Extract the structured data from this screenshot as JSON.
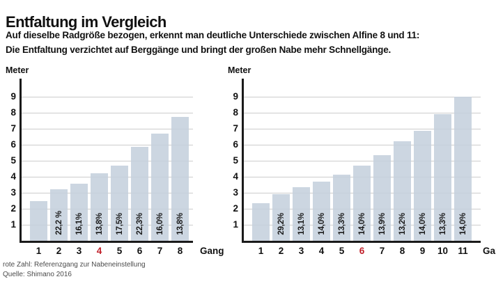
{
  "header": {
    "title": "Entfaltung im Vergleich",
    "subtitle_line1": "Auf dieselbe Radgröße bezogen, erkennt man deutliche Unterschiede zwischen Alfine 8 und 11:",
    "subtitle_line2": "Die Entfaltung verzichtet auf Berggänge und bringt der großen Nabe mehr Schnellgänge."
  },
  "footnote": {
    "line1": "rote Zahl: Referenzgang zur Nabeneinstellung",
    "line2": "Quelle: Shimano 2016"
  },
  "colors": {
    "bar_fill": "#c5d0dd",
    "grid_line": "#cccccc",
    "axis": "#1a1a1a",
    "reference_red": "#c0202a",
    "text": "#111111",
    "footnote_text": "#4a4a4a"
  },
  "chart_data": [
    {
      "type": "bar",
      "ylabel": "Meter",
      "xlabel": "Gang",
      "ylim": [
        0,
        10
      ],
      "yticks": [
        1,
        2,
        3,
        4,
        5,
        6,
        7,
        8,
        9
      ],
      "grid": true,
      "categories": [
        "1",
        "2",
        "3",
        "4",
        "5",
        "6",
        "7",
        "8"
      ],
      "values": [
        2.5,
        3.2,
        3.55,
        4.2,
        4.7,
        5.85,
        6.7,
        7.75
      ],
      "bar_labels": [
        "",
        "22,2 %",
        "16,1%",
        "13,8%",
        "17,5%",
        "22,3%",
        "16,0%",
        "13,8%"
      ],
      "reference_category": "4"
    },
    {
      "type": "bar",
      "ylabel": "Meter",
      "xlabel": "Gang",
      "ylim": [
        0,
        10
      ],
      "yticks": [
        1,
        2,
        3,
        4,
        5,
        6,
        7,
        8,
        9
      ],
      "grid": true,
      "categories": [
        "1",
        "2",
        "3",
        "4",
        "5",
        "6",
        "7",
        "8",
        "9",
        "10",
        "11"
      ],
      "values": [
        2.35,
        2.9,
        3.35,
        3.7,
        4.15,
        4.7,
        5.35,
        6.2,
        6.85,
        7.9,
        9.0
      ],
      "bar_labels": [
        "",
        "29,2%",
        "13,1%",
        "14,0%",
        "13,3%",
        "14,0%",
        "13,9%",
        "13,2%",
        "14,0%",
        "13,3%",
        "14,0%"
      ],
      "reference_category": "6"
    }
  ]
}
